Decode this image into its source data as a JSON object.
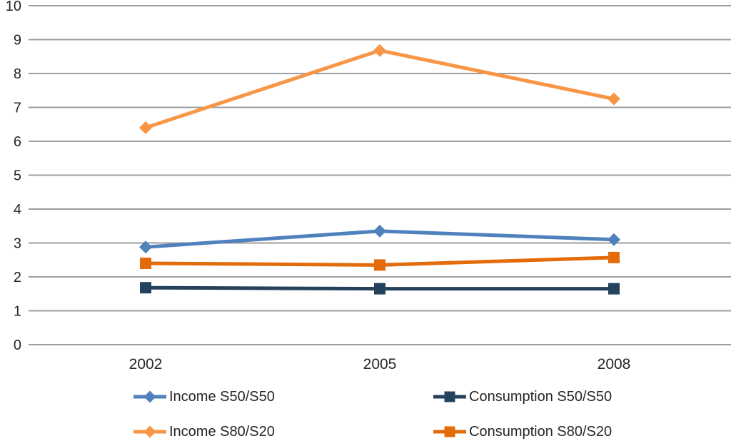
{
  "chart_data": {
    "type": "line",
    "title": "",
    "xlabel": "",
    "ylabel": "",
    "categories": [
      "2002",
      "2005",
      "2008"
    ],
    "series": [
      {
        "name": "Income S50/S50",
        "marker": "diamond",
        "color": "#4F81BD",
        "values": [
          2.88,
          3.35,
          3.1
        ]
      },
      {
        "name": "Consumption S50/S50",
        "marker": "square",
        "color": "#24425C",
        "values": [
          1.68,
          1.65,
          1.65
        ]
      },
      {
        "name": "Income S80/S20",
        "marker": "diamond",
        "color": "#F79646",
        "values": [
          6.4,
          8.68,
          7.25
        ]
      },
      {
        "name": "Consumption S80/S20",
        "marker": "square",
        "color": "#E36C0A",
        "values": [
          2.4,
          2.35,
          2.57
        ]
      }
    ],
    "ylim": [
      0,
      10
    ],
    "ytick_step": 1,
    "ytick_labels": [
      "0",
      "1",
      "2",
      "3",
      "4",
      "5",
      "6",
      "7",
      "8",
      "9",
      "10"
    ],
    "grid": true,
    "legend_position": "bottom",
    "legend_columns": 2
  },
  "style": {
    "gridline_color": "#9D9D9D",
    "axis_label_color": "#262626",
    "background_color": "#FFFFFF"
  }
}
